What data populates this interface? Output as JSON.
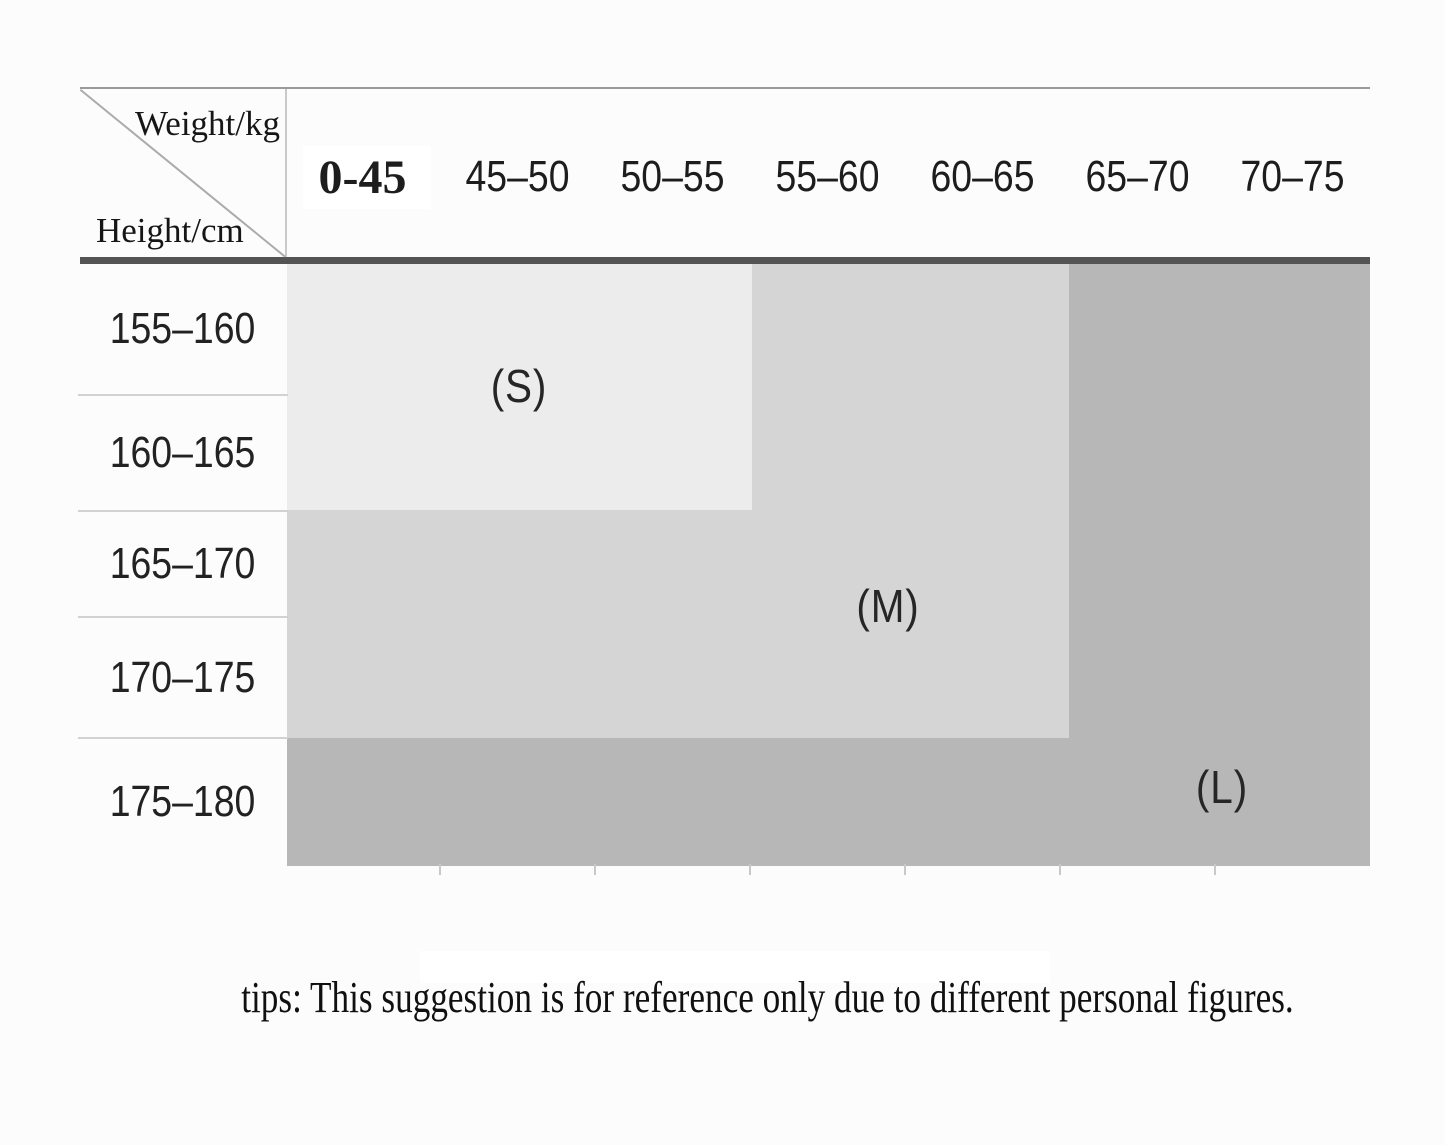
{
  "corner": {
    "weight_label": "Weight/kg",
    "height_label": "Height/cm"
  },
  "columns": [
    {
      "label": "0-45",
      "highlighted": true
    },
    {
      "label": "45–50"
    },
    {
      "label": "50–55"
    },
    {
      "label": "55–60"
    },
    {
      "label": "60–65"
    },
    {
      "label": "65–70"
    },
    {
      "label": "70–75"
    }
  ],
  "rows": [
    {
      "label": "155–160"
    },
    {
      "label": "160–165"
    },
    {
      "label": "165–170"
    },
    {
      "label": "170–175"
    },
    {
      "label": "175–180"
    }
  ],
  "regions": [
    {
      "code": "S",
      "label": "(S)",
      "color": "#ececec"
    },
    {
      "code": "M",
      "label": "(M)",
      "color": "#d5d5d5"
    },
    {
      "code": "L",
      "label": "(L)",
      "color": "#b7b7b7"
    }
  ],
  "tips": "tips: This suggestion is for reference only due to different personal figures.",
  "chart_data": {
    "type": "table",
    "col_axis_label": "Weight/kg",
    "row_axis_label": "Height/cm",
    "columns": [
      "0-45",
      "45–50",
      "50–55",
      "55–60",
      "60–65",
      "65–70",
      "70–75"
    ],
    "rows": [
      "155–160",
      "160–165",
      "165–170",
      "170–175",
      "175–180"
    ],
    "cells": [
      [
        "S",
        "S",
        "S",
        "M",
        "M",
        "L",
        "L"
      ],
      [
        "S",
        "S",
        "S",
        "M",
        "M",
        "L",
        "L"
      ],
      [
        "M",
        "M",
        "M",
        "M",
        "M",
        "L",
        "L"
      ],
      [
        "M",
        "M",
        "M",
        "M",
        "M",
        "L",
        "L"
      ],
      [
        "L",
        "L",
        "L",
        "L",
        "L",
        "L",
        "L"
      ]
    ],
    "region_colors": {
      "S": "#ececec",
      "M": "#d5d5d5",
      "L": "#b7b7b7"
    },
    "note": "tips: This suggestion is for reference only due to different personal figures."
  }
}
